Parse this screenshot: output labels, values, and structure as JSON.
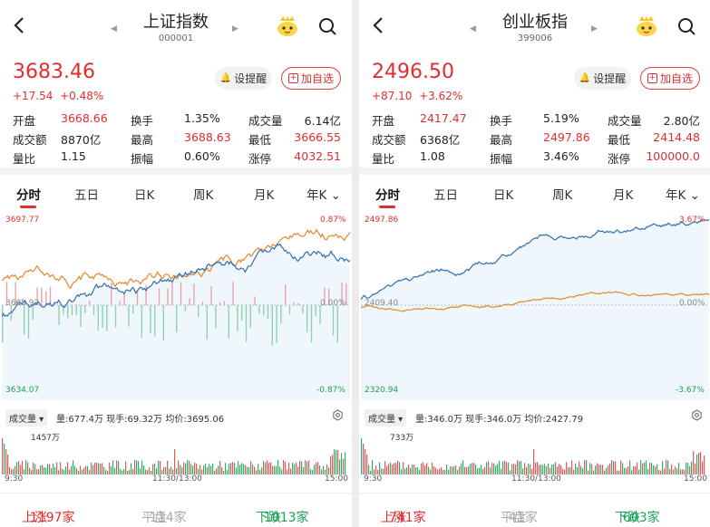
{
  "panels": [
    {
      "title": "上证指数",
      "code": "000001",
      "price": "3683.46",
      "change": "+17.54",
      "pct": "+0.48%",
      "alert_btn": "设提醒",
      "add_btn": "加自选",
      "stats": [
        [
          "开盘",
          "3668.66",
          "换手",
          "1.35%",
          "成交量",
          "6.14亿"
        ],
        [
          "成交额",
          "8870亿",
          "最高",
          "3688.63",
          "最低",
          "3666.55"
        ],
        [
          "量比",
          "1.15",
          "振幅",
          "0.60%",
          "涨停",
          "4032.51"
        ]
      ],
      "tabs": [
        "分时",
        "五日",
        "日K",
        "周K",
        "月K",
        "年K"
      ],
      "axis": {
        "top": "3697.77",
        "mid": "3665.92",
        "bottom": "3634.07",
        "top_pct": "0.87%",
        "mid_pct": "0.00%",
        "bottom_pct": "-0.87%"
      },
      "vol": {
        "label": "成交量",
        "info": "量:677.4万  现手:69.32万  均价:3695.06",
        "max": "1457万"
      },
      "times": [
        "9:30",
        "11:30/13:00",
        "15:00"
      ],
      "breadth": {
        "up_label": "上涨",
        "up": "1197家",
        "flat_label": "平盘",
        "flat": "114家",
        "down_label": "下跌",
        "down": "1013家"
      }
    },
    {
      "title": "创业板指",
      "code": "399006",
      "price": "2496.50",
      "change": "+87.10",
      "pct": "+3.62%",
      "alert_btn": "设提醒",
      "add_btn": "加自选",
      "stats": [
        [
          "开盘",
          "2417.47",
          "换手",
          "5.19%",
          "成交量",
          "2.80亿"
        ],
        [
          "成交额",
          "6368亿",
          "最高",
          "2497.86",
          "最低",
          "2414.48"
        ],
        [
          "量比",
          "1.08",
          "振幅",
          "3.46%",
          "涨停",
          "100000.0"
        ]
      ],
      "tabs": [
        "分时",
        "五日",
        "日K",
        "周K",
        "月K",
        "年K"
      ],
      "axis": {
        "top": "2497.86",
        "mid": "2409.40",
        "bottom": "2320.94",
        "top_pct": "3.67%",
        "mid_pct": "0.00%",
        "bottom_pct": "-3.67%"
      },
      "vol": {
        "label": "成交量",
        "info": "量:346.0万  现手:346.0万  均价:2427.79",
        "max": "733万"
      },
      "times": [
        "9:30",
        "11:30/13:00",
        "15:00"
      ],
      "breadth": {
        "up_label": "上涨",
        "up": "741家",
        "flat_label": "平盘",
        "flat": "41家",
        "down_label": "下跌",
        "down": "603家"
      }
    }
  ],
  "colors": {
    "up": "#e02e2e",
    "down": "#1aa15a",
    "line_blue": "#2f6fb5",
    "line_orange": "#e0892a"
  }
}
